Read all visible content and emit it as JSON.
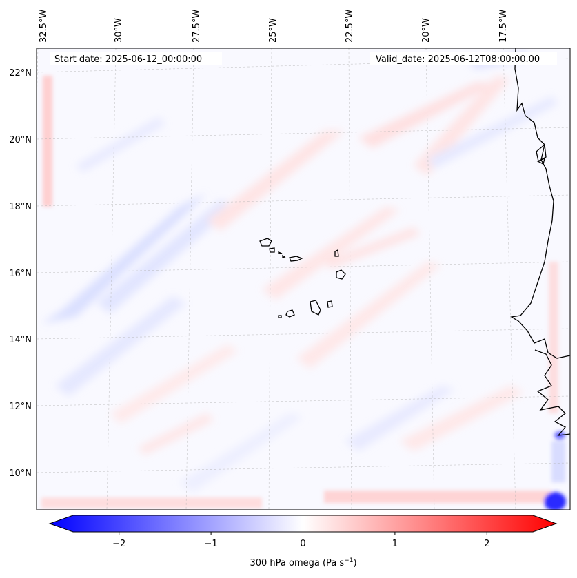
{
  "header": {
    "start_date": "Start date: 2025-06-12_00:00:00",
    "valid_date": "Valid_date: 2025-06-12T08:00:00.00"
  },
  "lon_labels": [
    "32.5°W",
    "30°W",
    "27.5°W",
    "25°W",
    "22.5°W",
    "20°W",
    "17.5°W"
  ],
  "lat_labels": [
    "22°N",
    "20°N",
    "18°N",
    "16°N",
    "14°N",
    "12°N",
    "10°N"
  ],
  "colorbar": {
    "ticks": [
      "−2",
      "−1",
      "0",
      "1",
      "2"
    ],
    "tick_values": [
      -2,
      -1,
      0,
      1,
      2
    ],
    "range": [
      -2.6,
      2.6
    ],
    "label": "300 hPa omega (Pa s",
    "label_sup": "−1",
    "label_end": ")",
    "colors": {
      "negative": "#0000ff",
      "neutral": "#ffffff",
      "positive": "#ff0000"
    }
  },
  "map": {
    "variable": "300 hPa omega",
    "coastline_color": "#000000",
    "gridline_color": "#b0b0b0"
  }
}
